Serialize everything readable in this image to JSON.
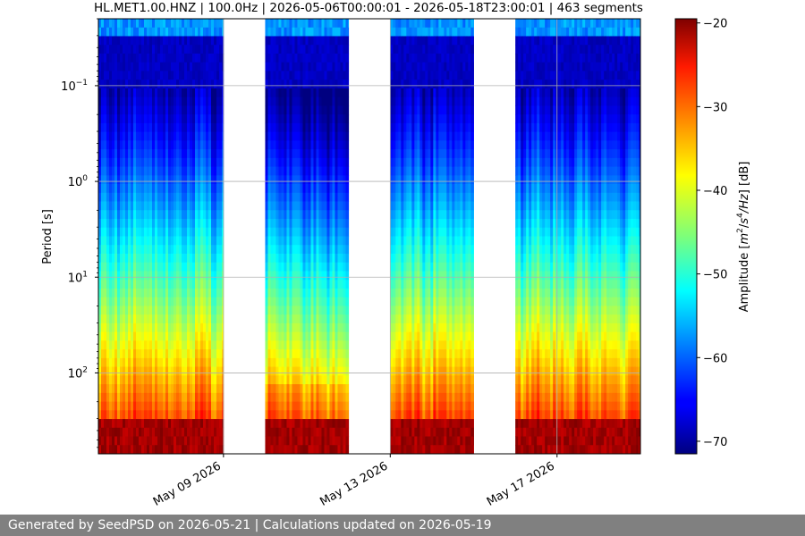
{
  "chart_data": {
    "type": "heatmap",
    "title": "HL.MET1.00.HNZ | 100.0Hz | 2026-05-06T00:00:01 - 2026-05-18T23:00:01 | 463 segments",
    "ylabel": "Period [s]",
    "y_scale": "log",
    "y_inverted": true,
    "ylim": [
      0.02,
      700
    ],
    "y_ticks": [
      {
        "value": 0.1,
        "base": "10",
        "exp": "−1"
      },
      {
        "value": 1,
        "base": "10",
        "exp": "0"
      },
      {
        "value": 10,
        "base": "10",
        "exp": "1"
      },
      {
        "value": 100,
        "base": "10",
        "exp": "2"
      }
    ],
    "x_start": "2026-05-06",
    "x_end": "2026-05-19",
    "x_ticks": [
      "May 09 2026",
      "May 13 2026",
      "May 17 2026"
    ],
    "x_tick_dates": [
      "2026-05-09",
      "2026-05-13",
      "2026-05-17"
    ],
    "grid": true,
    "data_blocks": [
      {
        "start": "2026-05-06",
        "end": "2026-05-09"
      },
      {
        "start": "2026-05-10",
        "end": "2026-05-12"
      },
      {
        "start": "2026-05-13",
        "end": "2026-05-15"
      },
      {
        "start": "2026-05-16",
        "end": "2026-05-19"
      }
    ],
    "colorbar": {
      "label": "Amplitude [m²/s⁴/Hz] [dB]",
      "label_parts": {
        "pre": "Amplitude [",
        "m": "m",
        "sup1": "2",
        "slash": "/",
        "s": "s",
        "sup2": "4",
        "hz": "/Hz",
        "post": "] [dB]"
      },
      "range": [
        -71.5,
        -19.5
      ],
      "ticks": [
        -20,
        -30,
        -40,
        -50,
        -60,
        -70
      ],
      "tick_labels": [
        "−20",
        "−30",
        "−40",
        "−50",
        "−60",
        "−70"
      ],
      "colormap": "jet"
    }
  },
  "footer": {
    "text": "Generated by SeedPSD on 2026-05-21 | Calculations updated on 2026-05-19"
  }
}
